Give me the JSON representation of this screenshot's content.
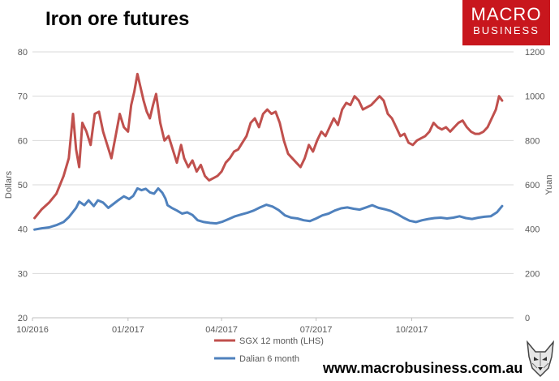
{
  "title": "Iron ore futures",
  "logo": {
    "line1": "MACRO",
    "line2": "BUSINESS",
    "color": "#c8161d"
  },
  "footer_url": "www.macrobusiness.com.au",
  "mascot_icon": "wolf-mascot-icon",
  "chart_data": {
    "type": "line",
    "title": "Iron ore futures",
    "ylabel": "Dollars",
    "y2label": "Yuan",
    "ylim": [
      20,
      80
    ],
    "y2lim": [
      0,
      1200
    ],
    "yticks": [
      20,
      30,
      40,
      50,
      60,
      70,
      80
    ],
    "y2ticks": [
      0,
      200,
      400,
      600,
      800,
      1000,
      1200
    ],
    "xlim": [
      "2016-10-01",
      "2018-01-07"
    ],
    "xticks": [
      {
        "date": "2016-10-01",
        "label": "10/2016"
      },
      {
        "date": "2017-01-01",
        "label": "01/2017"
      },
      {
        "date": "2017-04-01",
        "label": "04/2017"
      },
      {
        "date": "2017-07-01",
        "label": "07/2017"
      },
      {
        "date": "2017-10-01",
        "label": "10/2017"
      }
    ],
    "grid": true,
    "legend": "bottom",
    "series": [
      {
        "name": "SGX 12 month (LHS)",
        "axis": "left",
        "color": "#c0504d",
        "points": [
          [
            "2016-10-03",
            42.5
          ],
          [
            "2016-10-10",
            44.5
          ],
          [
            "2016-10-17",
            46
          ],
          [
            "2016-10-24",
            48
          ],
          [
            "2016-10-31",
            52
          ],
          [
            "2016-11-05",
            56
          ],
          [
            "2016-11-09",
            66
          ],
          [
            "2016-11-12",
            58
          ],
          [
            "2016-11-15",
            54
          ],
          [
            "2016-11-18",
            64
          ],
          [
            "2016-11-22",
            62
          ],
          [
            "2016-11-26",
            59
          ],
          [
            "2016-11-30",
            66
          ],
          [
            "2016-12-04",
            66.5
          ],
          [
            "2016-12-08",
            62
          ],
          [
            "2016-12-12",
            59
          ],
          [
            "2016-12-16",
            56
          ],
          [
            "2016-12-20",
            61
          ],
          [
            "2016-12-24",
            66
          ],
          [
            "2016-12-28",
            63
          ],
          [
            "2017-01-01",
            62
          ],
          [
            "2017-01-04",
            68
          ],
          [
            "2017-01-07",
            71
          ],
          [
            "2017-01-10",
            75
          ],
          [
            "2017-01-13",
            72
          ],
          [
            "2017-01-16",
            69
          ],
          [
            "2017-01-19",
            66.5
          ],
          [
            "2017-01-22",
            65
          ],
          [
            "2017-01-25",
            68
          ],
          [
            "2017-01-28",
            70.5
          ],
          [
            "2017-02-01",
            64
          ],
          [
            "2017-02-05",
            60
          ],
          [
            "2017-02-09",
            61
          ],
          [
            "2017-02-13",
            58
          ],
          [
            "2017-02-17",
            55
          ],
          [
            "2017-02-21",
            59
          ],
          [
            "2017-02-24",
            56
          ],
          [
            "2017-02-28",
            54
          ],
          [
            "2017-03-04",
            55.5
          ],
          [
            "2017-03-08",
            53
          ],
          [
            "2017-03-12",
            54.5
          ],
          [
            "2017-03-16",
            52
          ],
          [
            "2017-03-20",
            51
          ],
          [
            "2017-03-24",
            51.5
          ],
          [
            "2017-03-28",
            52
          ],
          [
            "2017-04-01",
            53
          ],
          [
            "2017-04-05",
            55
          ],
          [
            "2017-04-09",
            56
          ],
          [
            "2017-04-13",
            57.5
          ],
          [
            "2017-04-17",
            58
          ],
          [
            "2017-04-21",
            59.5
          ],
          [
            "2017-04-25",
            61
          ],
          [
            "2017-04-29",
            64
          ],
          [
            "2017-05-03",
            65
          ],
          [
            "2017-05-07",
            63
          ],
          [
            "2017-05-11",
            66
          ],
          [
            "2017-05-15",
            67
          ],
          [
            "2017-05-19",
            66
          ],
          [
            "2017-05-23",
            66.5
          ],
          [
            "2017-05-27",
            64
          ],
          [
            "2017-05-31",
            60
          ],
          [
            "2017-06-04",
            57
          ],
          [
            "2017-06-08",
            56
          ],
          [
            "2017-06-12",
            55
          ],
          [
            "2017-06-16",
            54
          ],
          [
            "2017-06-20",
            56
          ],
          [
            "2017-06-24",
            59
          ],
          [
            "2017-06-28",
            57.5
          ],
          [
            "2017-07-02",
            60
          ],
          [
            "2017-07-06",
            62
          ],
          [
            "2017-07-10",
            61
          ],
          [
            "2017-07-14",
            63
          ],
          [
            "2017-07-18",
            65
          ],
          [
            "2017-07-22",
            63.5
          ],
          [
            "2017-07-26",
            67
          ],
          [
            "2017-07-30",
            68.5
          ],
          [
            "2017-08-03",
            68
          ],
          [
            "2017-08-07",
            70
          ],
          [
            "2017-08-11",
            69
          ],
          [
            "2017-08-15",
            67
          ],
          [
            "2017-08-19",
            67.5
          ],
          [
            "2017-08-23",
            68
          ],
          [
            "2017-08-27",
            69
          ],
          [
            "2017-08-31",
            70
          ],
          [
            "2017-09-04",
            69
          ],
          [
            "2017-09-08",
            66
          ],
          [
            "2017-09-12",
            65
          ],
          [
            "2017-09-16",
            63
          ],
          [
            "2017-09-20",
            61
          ],
          [
            "2017-09-24",
            61.5
          ],
          [
            "2017-09-28",
            59.5
          ],
          [
            "2017-10-02",
            59
          ],
          [
            "2017-10-06",
            60
          ],
          [
            "2017-10-10",
            60.5
          ],
          [
            "2017-10-14",
            61
          ],
          [
            "2017-10-18",
            62
          ],
          [
            "2017-10-22",
            64
          ],
          [
            "2017-10-26",
            63
          ],
          [
            "2017-10-30",
            62.5
          ],
          [
            "2017-11-03",
            63
          ],
          [
            "2017-11-07",
            62
          ],
          [
            "2017-11-11",
            63
          ],
          [
            "2017-11-15",
            64
          ],
          [
            "2017-11-19",
            64.5
          ],
          [
            "2017-11-23",
            63
          ],
          [
            "2017-11-27",
            62
          ],
          [
            "2017-12-01",
            61.5
          ],
          [
            "2017-12-05",
            61.5
          ],
          [
            "2017-12-09",
            62
          ],
          [
            "2017-12-13",
            63
          ],
          [
            "2017-12-17",
            65
          ],
          [
            "2017-12-21",
            67
          ],
          [
            "2017-12-24",
            70
          ],
          [
            "2017-12-27",
            69
          ]
        ]
      },
      {
        "name": "Dalian 6 month",
        "axis": "right",
        "color": "#4f81bd",
        "points": [
          [
            "2016-10-03",
            398
          ],
          [
            "2016-10-10",
            404
          ],
          [
            "2016-10-17",
            408
          ],
          [
            "2016-10-24",
            418
          ],
          [
            "2016-10-31",
            432
          ],
          [
            "2016-11-05",
            454
          ],
          [
            "2016-11-09",
            478
          ],
          [
            "2016-11-12",
            496
          ],
          [
            "2016-11-15",
            524
          ],
          [
            "2016-11-20",
            508
          ],
          [
            "2016-11-24",
            530
          ],
          [
            "2016-11-29",
            504
          ],
          [
            "2016-12-03",
            530
          ],
          [
            "2016-12-08",
            520
          ],
          [
            "2016-12-13",
            496
          ],
          [
            "2016-12-18",
            514
          ],
          [
            "2016-12-23",
            532
          ],
          [
            "2016-12-28",
            548
          ],
          [
            "2017-01-02",
            536
          ],
          [
            "2017-01-06",
            550
          ],
          [
            "2017-01-10",
            584
          ],
          [
            "2017-01-14",
            576
          ],
          [
            "2017-01-18",
            582
          ],
          [
            "2017-01-22",
            566
          ],
          [
            "2017-01-26",
            560
          ],
          [
            "2017-01-30",
            584
          ],
          [
            "2017-02-03",
            564
          ],
          [
            "2017-02-06",
            538
          ],
          [
            "2017-02-08",
            508
          ],
          [
            "2017-02-12",
            496
          ],
          [
            "2017-02-17",
            484
          ],
          [
            "2017-02-22",
            470
          ],
          [
            "2017-02-27",
            476
          ],
          [
            "2017-03-04",
            464
          ],
          [
            "2017-03-09",
            440
          ],
          [
            "2017-03-15",
            432
          ],
          [
            "2017-03-21",
            428
          ],
          [
            "2017-03-27",
            426
          ],
          [
            "2017-04-02",
            434
          ],
          [
            "2017-04-08",
            446
          ],
          [
            "2017-04-14",
            458
          ],
          [
            "2017-04-20",
            466
          ],
          [
            "2017-04-26",
            474
          ],
          [
            "2017-05-02",
            484
          ],
          [
            "2017-05-08",
            498
          ],
          [
            "2017-05-14",
            510
          ],
          [
            "2017-05-20",
            502
          ],
          [
            "2017-05-26",
            486
          ],
          [
            "2017-06-01",
            462
          ],
          [
            "2017-06-07",
            452
          ],
          [
            "2017-06-13",
            448
          ],
          [
            "2017-06-19",
            440
          ],
          [
            "2017-06-25",
            436
          ],
          [
            "2017-07-01",
            448
          ],
          [
            "2017-07-07",
            462
          ],
          [
            "2017-07-13",
            470
          ],
          [
            "2017-07-19",
            484
          ],
          [
            "2017-07-25",
            494
          ],
          [
            "2017-07-31",
            498
          ],
          [
            "2017-08-06",
            492
          ],
          [
            "2017-08-12",
            488
          ],
          [
            "2017-08-18",
            498
          ],
          [
            "2017-08-24",
            508
          ],
          [
            "2017-08-30",
            496
          ],
          [
            "2017-09-05",
            490
          ],
          [
            "2017-09-11",
            482
          ],
          [
            "2017-09-17",
            468
          ],
          [
            "2017-09-23",
            452
          ],
          [
            "2017-09-29",
            438
          ],
          [
            "2017-10-05",
            432
          ],
          [
            "2017-10-11",
            440
          ],
          [
            "2017-10-17",
            446
          ],
          [
            "2017-10-23",
            450
          ],
          [
            "2017-10-29",
            452
          ],
          [
            "2017-11-04",
            448
          ],
          [
            "2017-11-10",
            452
          ],
          [
            "2017-11-16",
            458
          ],
          [
            "2017-11-22",
            450
          ],
          [
            "2017-11-28",
            446
          ],
          [
            "2017-12-04",
            452
          ],
          [
            "2017-12-10",
            456
          ],
          [
            "2017-12-16",
            458
          ],
          [
            "2017-12-22",
            476
          ],
          [
            "2017-12-27",
            504
          ]
        ]
      }
    ]
  }
}
